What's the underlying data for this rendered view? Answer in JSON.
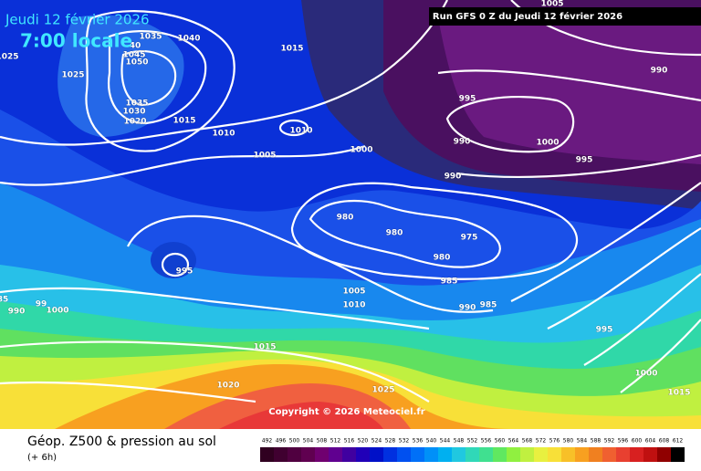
{
  "header": {
    "date": "Jeudi 12 février 2026",
    "time": "7:00 locale",
    "run": "Run GFS 0 Z du Jeudi 12 février 2026"
  },
  "copyright": "Copyright © 2026 Meteociel.fr",
  "footer": {
    "title": "Géop. Z500 & pression au sol",
    "step": "(+ 6h)"
  },
  "legend": {
    "ticks": [
      492,
      496,
      500,
      504,
      508,
      512,
      516,
      520,
      524,
      528,
      532,
      536,
      540,
      544,
      548,
      552,
      556,
      560,
      564,
      568,
      572,
      576,
      580,
      584,
      588,
      592,
      596,
      600,
      604,
      608,
      612
    ]
  },
  "isobar_labels": [
    "1035",
    "1040",
    "40",
    "1045",
    "1050",
    "1025",
    "1025",
    "1015",
    "1035",
    "1030",
    "1020",
    "1015",
    "1010",
    "1010",
    "1005",
    "1000",
    "1005",
    "990",
    "995",
    "990",
    "1000",
    "995",
    "990",
    "980",
    "980",
    "975",
    "980",
    "985",
    "995",
    "1005",
    "1010",
    "990",
    "985",
    "995",
    "990",
    "1000",
    "1015",
    "1020",
    "1025",
    "1000",
    "1015",
    "85",
    "99"
  ]
}
